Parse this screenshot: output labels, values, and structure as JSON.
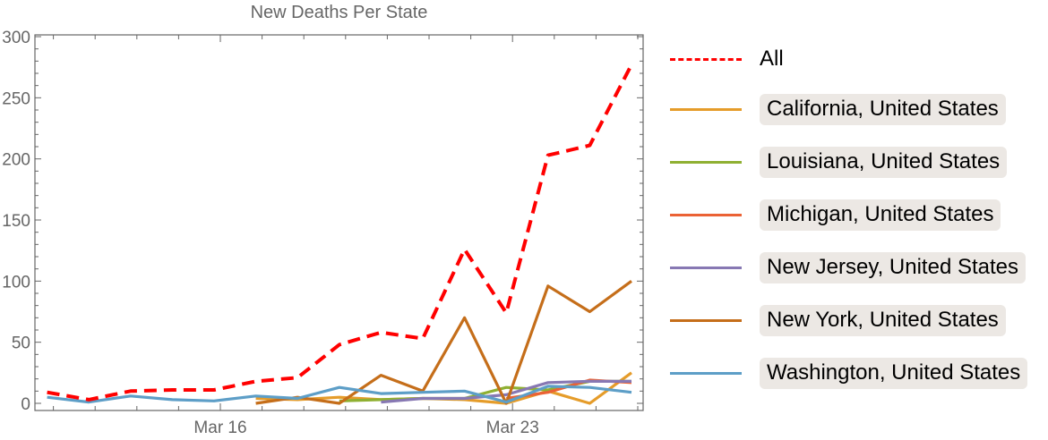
{
  "chart_data": {
    "type": "line",
    "title": "New Deaths Per State",
    "xlabel": "",
    "ylabel": "",
    "ylim": [
      0,
      300
    ],
    "yticks": [
      0,
      50,
      100,
      150,
      200,
      250,
      300
    ],
    "xtick_labels": [
      {
        "label": "Mar 16",
        "day": 16
      },
      {
        "label": "Mar 23",
        "day": 23
      }
    ],
    "x_days": [
      12,
      13,
      14,
      15,
      16,
      17,
      18,
      19,
      20,
      21,
      22,
      23,
      24,
      25,
      26
    ],
    "x": [
      "Mar 12",
      "Mar 13",
      "Mar 14",
      "Mar 15",
      "Mar 16",
      "Mar 17",
      "Mar 18",
      "Mar 19",
      "Mar 20",
      "Mar 21",
      "Mar 22",
      "Mar 23",
      "Mar 24",
      "Mar 25",
      "Mar 26"
    ],
    "grid": false,
    "legend_position": "right",
    "series": [
      {
        "name": "All",
        "color": "#ff0000",
        "dashed": true,
        "boxed": false,
        "values": [
          9,
          3,
          10,
          11,
          11,
          18,
          21,
          48,
          58,
          53,
          126,
          74,
          203,
          211,
          277
        ]
      },
      {
        "name": "California, United States",
        "color": "#e59c2a",
        "dashed": false,
        "boxed": true,
        "values": [
          null,
          null,
          null,
          null,
          null,
          4,
          3,
          5,
          3,
          4,
          3,
          0,
          10,
          0,
          25
        ]
      },
      {
        "name": "Louisiana, United States",
        "color": "#8fb032",
        "dashed": false,
        "boxed": true,
        "values": [
          null,
          null,
          null,
          null,
          null,
          null,
          null,
          2,
          3,
          4,
          4,
          13,
          11,
          18,
          18
        ]
      },
      {
        "name": "Michigan, United States",
        "color": "#eb6235",
        "dashed": false,
        "boxed": true,
        "values": [
          null,
          null,
          null,
          null,
          null,
          null,
          null,
          null,
          null,
          null,
          null,
          4,
          9,
          19,
          17
        ]
      },
      {
        "name": "New Jersey, United States",
        "color": "#8778b3",
        "dashed": false,
        "boxed": true,
        "values": [
          null,
          null,
          null,
          null,
          null,
          null,
          null,
          null,
          1,
          4,
          4,
          7,
          17,
          18,
          18
        ]
      },
      {
        "name": "New York, United States",
        "color": "#c56e1a",
        "dashed": false,
        "boxed": true,
        "values": [
          null,
          null,
          null,
          null,
          null,
          0,
          5,
          0,
          23,
          10,
          70,
          0,
          96,
          75,
          100
        ]
      },
      {
        "name": "Washington, United States",
        "color": "#5d9ec7",
        "dashed": false,
        "boxed": true,
        "values": [
          5,
          1,
          6,
          3,
          2,
          6,
          4,
          13,
          8,
          9,
          10,
          1,
          14,
          13,
          9
        ]
      }
    ]
  }
}
